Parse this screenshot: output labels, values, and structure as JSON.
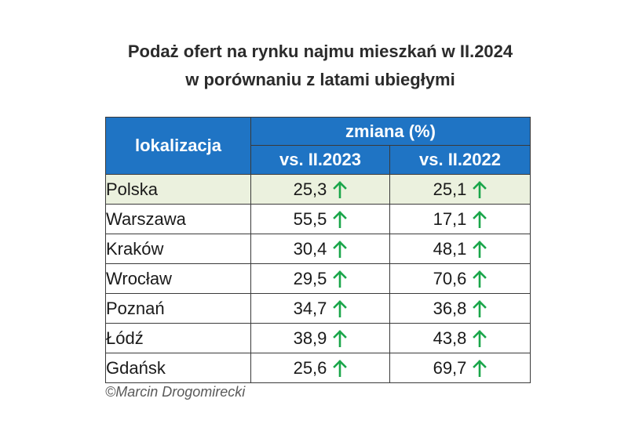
{
  "title": {
    "line1": "Podaż ofert na rynku najmu mieszkań w II.2024",
    "line2": "w porównaniu z latami ubiegłymi"
  },
  "colors": {
    "header_bg": "#1f74c4",
    "highlight_row": "#ebf1de",
    "arrow_up": "#1aa64a"
  },
  "chart_data": {
    "type": "table",
    "title": "Podaż ofert na rynku najmu mieszkań w II.2024 w porównaniu z latami ubiegłymi",
    "headers": {
      "location": "lokalizacja",
      "change_group": "zmiana (%)",
      "col1": "vs. II.2023",
      "col2": "vs. II.2022"
    },
    "rows": [
      {
        "name": "Polska",
        "v1": "25,3",
        "v2": "25,1",
        "trend1": "up",
        "trend2": "up",
        "highlight": true
      },
      {
        "name": "Warszawa",
        "v1": "55,5",
        "v2": "17,1",
        "trend1": "up",
        "trend2": "up"
      },
      {
        "name": "Kraków",
        "v1": "30,4",
        "v2": "48,1",
        "trend1": "up",
        "trend2": "up"
      },
      {
        "name": "Wrocław",
        "v1": "29,5",
        "v2": "70,6",
        "trend1": "up",
        "trend2": "up"
      },
      {
        "name": "Poznań",
        "v1": "34,7",
        "v2": "36,8",
        "trend1": "up",
        "trend2": "up"
      },
      {
        "name": "Łódź",
        "v1": "38,9",
        "v2": "43,8",
        "trend1": "up",
        "trend2": "up"
      },
      {
        "name": "Gdańsk",
        "v1": "25,6",
        "v2": "69,7",
        "trend1": "up",
        "trend2": "up"
      }
    ]
  },
  "footer": "©Marcin Drogomirecki"
}
